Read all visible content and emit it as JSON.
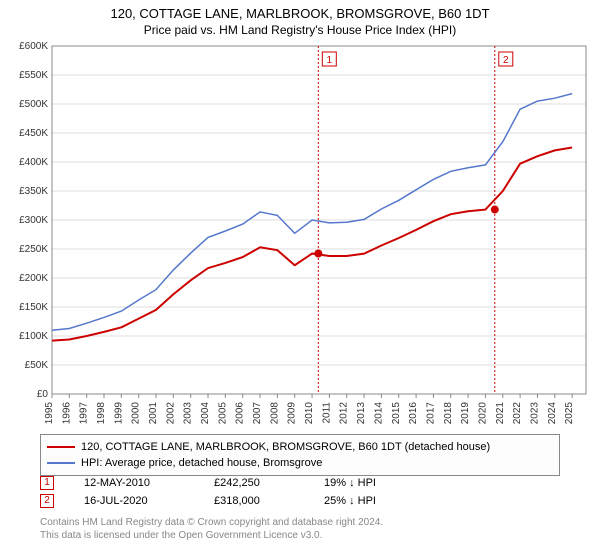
{
  "title": "120, COTTAGE LANE, MARLBROOK, BROMSGROVE, B60 1DT",
  "subtitle": "Price paid vs. HM Land Registry's House Price Index (HPI)",
  "chart": {
    "type": "line",
    "background_color": "#ffffff",
    "grid_color": "#dddddd",
    "axis_color": "#888888",
    "label_fontsize": 10,
    "x_years": [
      1995,
      1996,
      1997,
      1998,
      1999,
      2000,
      2001,
      2002,
      2003,
      2004,
      2005,
      2006,
      2007,
      2008,
      2009,
      2010,
      2011,
      2012,
      2013,
      2014,
      2015,
      2016,
      2017,
      2018,
      2019,
      2020,
      2021,
      2022,
      2023,
      2024,
      2025
    ],
    "xlim": [
      1995,
      2025.8
    ],
    "y_ticks": [
      0,
      50000,
      100000,
      150000,
      200000,
      250000,
      300000,
      350000,
      400000,
      450000,
      500000,
      550000,
      600000
    ],
    "y_tick_labels": [
      "£0",
      "£50K",
      "£100K",
      "£150K",
      "£200K",
      "£250K",
      "£300K",
      "£350K",
      "£400K",
      "£450K",
      "£500K",
      "£550K",
      "£600K"
    ],
    "ylim": [
      0,
      600000
    ],
    "series": [
      {
        "label": "120, COTTAGE LANE, MARLBROOK, BROMSGROVE, B60 1DT (detached house)",
        "color": "#cc0000",
        "line_width": 2,
        "points": [
          [
            1995,
            92000
          ],
          [
            1996,
            94000
          ],
          [
            1997,
            100000
          ],
          [
            1998,
            107000
          ],
          [
            1999,
            115000
          ],
          [
            2000,
            130000
          ],
          [
            2001,
            145000
          ],
          [
            2002,
            172000
          ],
          [
            2003,
            196000
          ],
          [
            2004,
            217000
          ],
          [
            2005,
            226000
          ],
          [
            2006,
            236000
          ],
          [
            2007,
            253000
          ],
          [
            2008,
            248000
          ],
          [
            2009,
            222000
          ],
          [
            2010,
            242000
          ],
          [
            2011,
            238000
          ],
          [
            2012,
            238000
          ],
          [
            2013,
            242000
          ],
          [
            2014,
            256000
          ],
          [
            2015,
            269000
          ],
          [
            2016,
            283000
          ],
          [
            2017,
            298000
          ],
          [
            2018,
            310000
          ],
          [
            2019,
            315000
          ],
          [
            2020,
            318000
          ],
          [
            2021,
            350000
          ],
          [
            2022,
            397000
          ],
          [
            2023,
            410000
          ],
          [
            2024,
            420000
          ],
          [
            2025,
            425000
          ]
        ]
      },
      {
        "label": "HPI: Average price, detached house, Bromsgrove",
        "color": "#5577cc",
        "line_width": 1.5,
        "points": [
          [
            1995,
            110000
          ],
          [
            1996,
            113000
          ],
          [
            1997,
            122000
          ],
          [
            1998,
            132000
          ],
          [
            1999,
            143000
          ],
          [
            2000,
            162000
          ],
          [
            2001,
            180000
          ],
          [
            2002,
            214000
          ],
          [
            2003,
            243000
          ],
          [
            2004,
            270000
          ],
          [
            2005,
            281000
          ],
          [
            2006,
            293000
          ],
          [
            2007,
            314000
          ],
          [
            2008,
            308000
          ],
          [
            2009,
            277000
          ],
          [
            2010,
            300000
          ],
          [
            2011,
            295000
          ],
          [
            2012,
            296000
          ],
          [
            2013,
            301000
          ],
          [
            2014,
            319000
          ],
          [
            2015,
            334000
          ],
          [
            2016,
            352000
          ],
          [
            2017,
            370000
          ],
          [
            2018,
            384000
          ],
          [
            2019,
            390000
          ],
          [
            2020,
            395000
          ],
          [
            2021,
            435000
          ],
          [
            2022,
            491000
          ],
          [
            2023,
            505000
          ],
          [
            2024,
            510000
          ],
          [
            2025,
            518000
          ]
        ]
      }
    ],
    "markers": [
      {
        "id": "1",
        "x": 2010.36,
        "y": 242250,
        "color": "#cc0000"
      },
      {
        "id": "2",
        "x": 2020.54,
        "y": 318000,
        "color": "#cc0000"
      }
    ]
  },
  "legend": {
    "items": [
      {
        "color": "#cc0000",
        "label": "120, COTTAGE LANE, MARLBROOK, BROMSGROVE, B60 1DT (detached house)"
      },
      {
        "color": "#5577cc",
        "label": "HPI: Average price, detached house, Bromsgrove"
      }
    ]
  },
  "sales": [
    {
      "id": "1",
      "color": "#cc0000",
      "date": "12-MAY-2010",
      "price": "£242,250",
      "delta": "19% ↓ HPI"
    },
    {
      "id": "2",
      "color": "#cc0000",
      "date": "16-JUL-2020",
      "price": "£318,000",
      "delta": "25% ↓ HPI"
    }
  ],
  "footer": {
    "line1": "Contains HM Land Registry data © Crown copyright and database right 2024.",
    "line2": "This data is licensed under the Open Government Licence v3.0."
  }
}
